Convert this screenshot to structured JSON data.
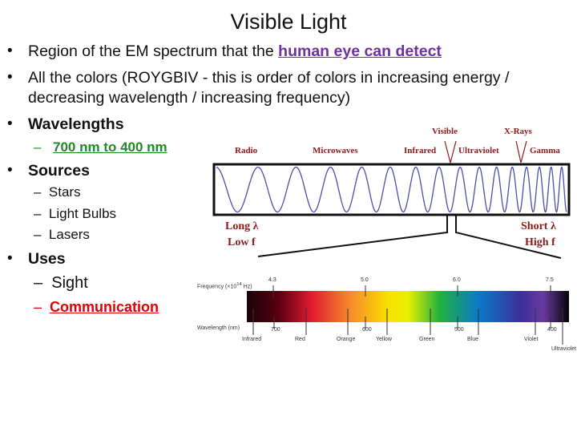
{
  "title": "Visible Light",
  "bullets": {
    "b1_pre": "Region of the EM spectrum that the ",
    "b1_link": "human eye can detect",
    "b2_l1": "All the colors (ROYGBIV - this is order of colors in increasing energy /",
    "b2_l2": "decreasing wavelength / increasing frequency)",
    "wavelengths": "Wavelengths",
    "wavelengths_sub": "700 nm to 400 nm",
    "sources": "Sources",
    "sources_items": [
      "Stars",
      "Light Bulbs",
      "Lasers"
    ],
    "uses": "Uses",
    "uses_items": [
      "Sight",
      "Communication"
    ]
  },
  "em_diagram": {
    "labels": {
      "radio": "Radio",
      "microwaves": "Microwaves",
      "infrared": "Infrared",
      "visible": "Visible",
      "ultraviolet": "Ultraviolet",
      "xrays": "X-Rays",
      "gamma": "Gamma"
    },
    "long": "Long λ",
    "low": "Low f",
    "short": "Short λ",
    "high": "High f"
  },
  "spectrum": {
    "freq_label": "Frequency (×10",
    "freq_exp": "14",
    "freq_unit": " Hz)",
    "wl_label": "Wavelength (nm)",
    "freq_ticks": [
      "4.3",
      "5.0",
      "6.0",
      "7.5"
    ],
    "wl_ticks": [
      "700",
      "600",
      "500",
      "400"
    ],
    "colors": [
      "Infrared",
      "Red",
      "Orange",
      "Yellow",
      "Green",
      "Blue",
      "Violet",
      "Ultraviolet"
    ]
  }
}
